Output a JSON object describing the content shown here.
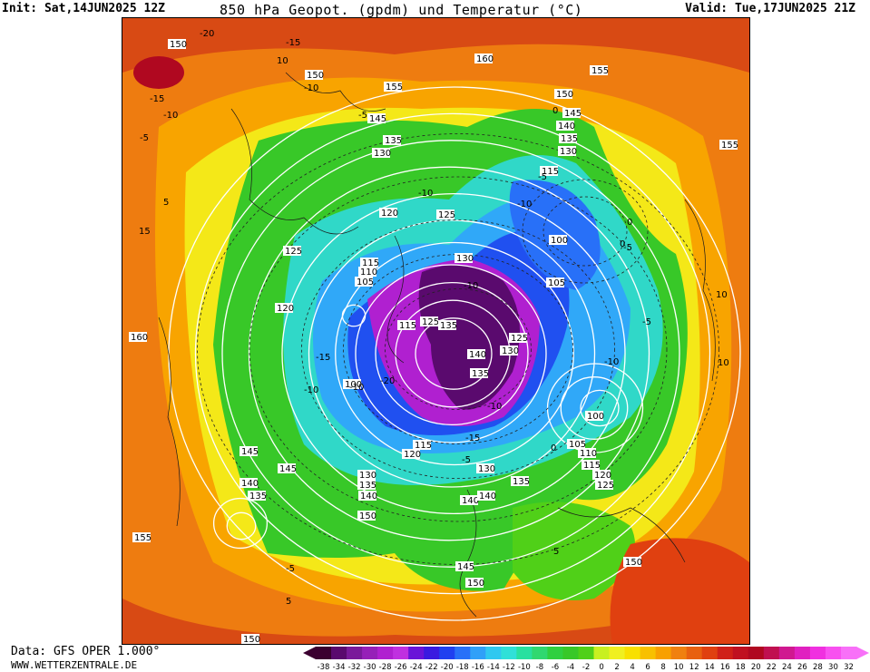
{
  "header": {
    "init": "Init: Sat,14JUN2025 12Z",
    "title": "850 hPa Geopot. (gpdm) und Temperatur (°C)",
    "valid": "Valid: Tue,17JUN2025 21Z"
  },
  "footer": {
    "data_source": "Data: GFS OPER 1.000°",
    "website": "WWW.WETTERZENTRALE.DE"
  },
  "legend": {
    "values": [
      "-38",
      "-34",
      "-32",
      "-30",
      "-28",
      "-26",
      "-24",
      "-22",
      "-20",
      "-18",
      "-16",
      "-14",
      "-12",
      "-10",
      "-8",
      "-6",
      "-4",
      "-2",
      "0",
      "2",
      "4",
      "6",
      "8",
      "10",
      "12",
      "14",
      "16",
      "18",
      "20",
      "22",
      "24",
      "26",
      "28",
      "30",
      "32"
    ],
    "colors": [
      "#3b0030",
      "#5a0a6e",
      "#7a1a9a",
      "#9620b8",
      "#b020d0",
      "#c030e0",
      "#6a14d8",
      "#3a1ae0",
      "#2040f0",
      "#2870f8",
      "#30a0f8",
      "#30c8f0",
      "#30e0d8",
      "#28e0a0",
      "#30d870",
      "#30d040",
      "#38c828",
      "#50d018",
      "#c8f020",
      "#f0f020",
      "#f8e000",
      "#f8c000",
      "#f8a000",
      "#f08010",
      "#e86010",
      "#e04010",
      "#d02018",
      "#c01020",
      "#b00820",
      "#c01050",
      "#d01890",
      "#e020c0",
      "#f030e0",
      "#f850f0",
      "#f870f8"
    ]
  },
  "geopotential_labels": [
    "150",
    "150",
    "160",
    "155",
    "150",
    "155",
    "145",
    "140",
    "135",
    "130",
    "155",
    "145",
    "135",
    "130",
    "125",
    "120",
    "115",
    "100",
    "105",
    "125",
    "115",
    "110",
    "105",
    "120",
    "130",
    "115",
    "125",
    "135",
    "140",
    "125",
    "130",
    "135",
    "100",
    "100",
    "160",
    "145",
    "145",
    "140",
    "135",
    "155",
    "105",
    "110",
    "115",
    "120",
    "125",
    "115",
    "120",
    "130",
    "135",
    "130",
    "135",
    "140",
    "140",
    "140",
    "145",
    "150",
    "150",
    "150",
    "150"
  ],
  "temperature_labels": [
    "-20",
    "-15",
    "-10",
    "-5",
    "-10",
    "-15",
    "-5",
    "-10",
    "0",
    "-5",
    "-10",
    "-5",
    "-10",
    "-15",
    "-10",
    "-10",
    "-5",
    "0",
    "-10",
    "-20",
    "-15",
    "-10",
    "-5",
    "0",
    "5",
    "10",
    "15",
    "10",
    "5",
    "-5",
    "0",
    "10",
    "5"
  ]
}
